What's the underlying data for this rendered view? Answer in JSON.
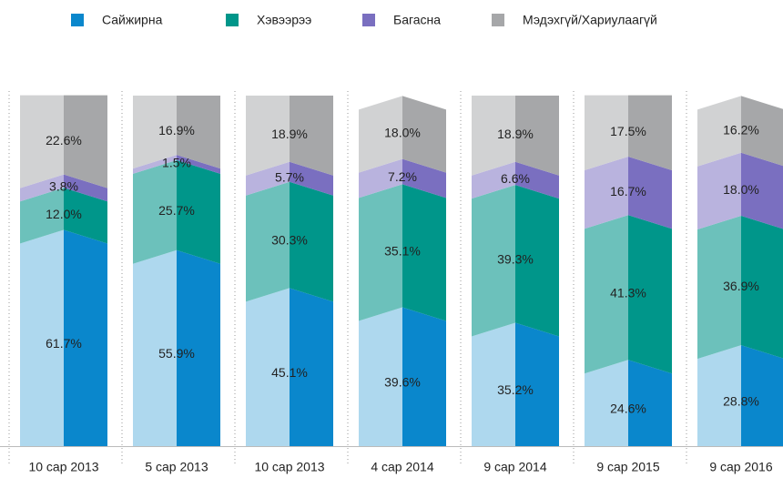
{
  "chart_data": {
    "type": "stacked_bar",
    "categories": [
      "10 сар 2013",
      "5 сар 2013",
      "10 сар 2013",
      "4 сар 2014",
      "9 сар 2014",
      "9 сар 2015",
      "9 сар 2016"
    ],
    "ylim": [
      0,
      100
    ],
    "series": [
      {
        "name": "Сайжирна",
        "color": "#0a87cc",
        "light_color": "#aed8ee",
        "values": [
          61.7,
          55.9,
          45.1,
          39.6,
          35.2,
          24.6,
          28.8
        ],
        "value_labels": [
          "61.7%",
          "55.9%",
          "45.1%",
          "39.6%",
          "35.2%",
          "24.6%",
          "28.8%"
        ]
      },
      {
        "name": "Хэвээрээ",
        "color": "#00968a",
        "light_color": "#6cc1bb",
        "values": [
          12.0,
          25.7,
          30.3,
          35.1,
          39.3,
          41.3,
          36.9
        ],
        "value_labels": [
          "12.0%",
          "25.7%",
          "30.3%",
          "35.1%",
          "39.3%",
          "41.3%",
          "36.9%"
        ]
      },
      {
        "name": "Багасна",
        "color": "#7a6fc0",
        "light_color": "#b9b3de",
        "values": [
          3.8,
          1.5,
          5.7,
          7.2,
          6.6,
          16.7,
          18.0
        ],
        "value_labels": [
          "3.8%",
          "1.5%",
          "5.7%",
          "7.2%",
          "6.6%",
          "16.7%",
          "18.0%"
        ]
      },
      {
        "name": "Мэдэхгүй/Хариулаагүй",
        "color": "#a6a7a9",
        "light_color": "#d1d2d3",
        "values": [
          22.6,
          16.9,
          18.9,
          18.0,
          18.9,
          17.5,
          16.2
        ],
        "value_labels": [
          "22.6%",
          "16.9%",
          "18.9%",
          "18.0%",
          "18.9%",
          "17.5%",
          "16.2%"
        ]
      }
    ]
  }
}
